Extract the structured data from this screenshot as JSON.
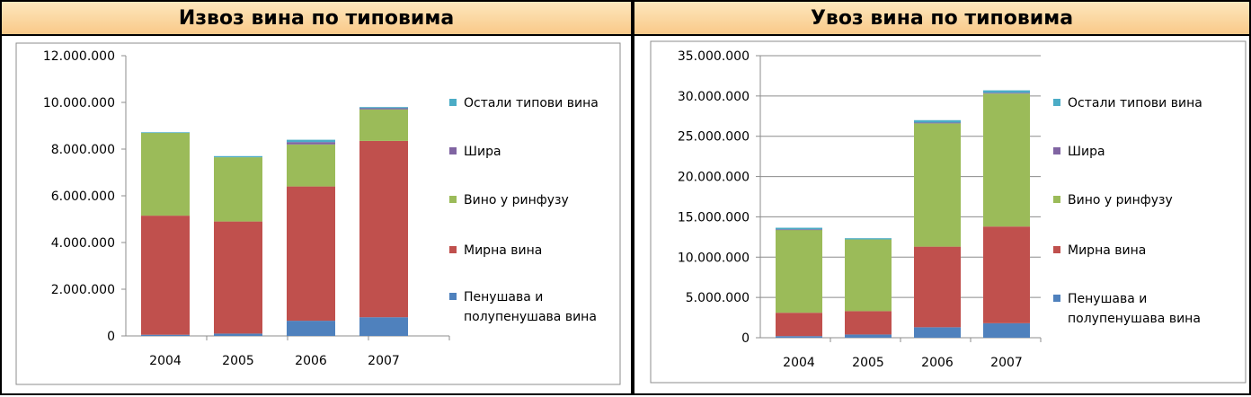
{
  "colors": {
    "sparkling": "#4f81bd",
    "still": "#c0504d",
    "bulk": "#9bbb59",
    "must": "#8064a2",
    "other": "#4bacc6",
    "header_top": "#fde7bd",
    "header_bottom": "#f9c989"
  },
  "charts": [
    {
      "id": "export",
      "title": "Извоз вина по типовима",
      "chart_data": {
        "type": "bar",
        "stacked": true,
        "categories": [
          "2004",
          "2005",
          "2006",
          "2007"
        ],
        "ylim": [
          0,
          12000000
        ],
        "yticks": [
          0,
          2000000,
          4000000,
          6000000,
          8000000,
          10000000,
          12000000
        ],
        "ytick_labels": [
          "0",
          "2.000.000",
          "4.000.000",
          "6.000.000",
          "8.000.000",
          "10.000.000",
          "12.000.000"
        ],
        "grid": false,
        "legend": "right",
        "series": [
          {
            "name": "Пенушава и полупенушава вина",
            "legend_lines": [
              "Пенушава и",
              "полупенушава вина"
            ],
            "color_key": "sparkling",
            "values": [
              50000,
              100000,
              650000,
              800000
            ]
          },
          {
            "name": "Мирна вина",
            "legend_lines": [
              "Мирна вина"
            ],
            "color_key": "still",
            "values": [
              5100000,
              4800000,
              5750000,
              7550000
            ]
          },
          {
            "name": "Вино у ринфузу",
            "legend_lines": [
              "Вино у ринфузу"
            ],
            "color_key": "bulk",
            "values": [
              3550000,
              2750000,
              1800000,
              1350000
            ]
          },
          {
            "name": "Шира",
            "legend_lines": [
              "Шира"
            ],
            "color_key": "must",
            "values": [
              0,
              0,
              100000,
              50000
            ]
          },
          {
            "name": "Остали типови вина",
            "legend_lines": [
              "Остали типови вина"
            ],
            "color_key": "other",
            "values": [
              20000,
              50000,
              100000,
              50000
            ]
          }
        ]
      }
    },
    {
      "id": "import",
      "title": "Увоз вина по типовима",
      "chart_data": {
        "type": "bar",
        "stacked": true,
        "categories": [
          "2004",
          "2005",
          "2006",
          "2007"
        ],
        "ylim": [
          0,
          35000000
        ],
        "yticks": [
          0,
          5000000,
          10000000,
          15000000,
          20000000,
          25000000,
          30000000,
          35000000
        ],
        "ytick_labels": [
          "0",
          "5.000.000",
          "10.000.000",
          "15.000.000",
          "20.000.000",
          "25.000.000",
          "30.000.000",
          "35.000.000"
        ],
        "grid": true,
        "legend": "right",
        "series": [
          {
            "name": "Пенушава и полупенушава вина",
            "legend_lines": [
              "Пенушава и",
              "полупенушава вина"
            ],
            "color_key": "sparkling",
            "values": [
              200000,
              400000,
              1300000,
              1800000
            ]
          },
          {
            "name": "Мирна вина",
            "legend_lines": [
              "Мирна вина"
            ],
            "color_key": "still",
            "values": [
              2900000,
              2900000,
              10000000,
              12000000
            ]
          },
          {
            "name": "Вино у ринфузу",
            "legend_lines": [
              "Вино у ринфузу"
            ],
            "color_key": "bulk",
            "values": [
              10300000,
              8900000,
              15300000,
              16500000
            ]
          },
          {
            "name": "Шира",
            "legend_lines": [
              "Шира"
            ],
            "color_key": "must",
            "values": [
              50000,
              0,
              100000,
              100000
            ]
          },
          {
            "name": "Остали типови вина",
            "legend_lines": [
              "Остали типови вина"
            ],
            "color_key": "other",
            "values": [
              200000,
              150000,
              300000,
              300000
            ]
          }
        ]
      }
    }
  ]
}
